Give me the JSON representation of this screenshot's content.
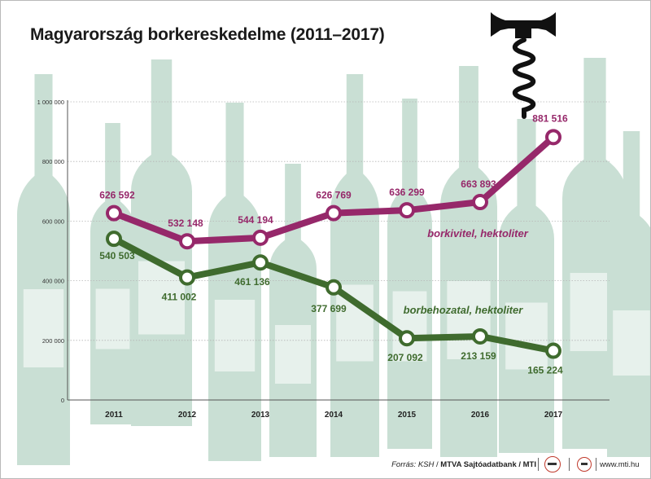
{
  "title": "Magyarország borkereskedelme (2011–2017)",
  "footer": {
    "source_label": "Forrás: KSH",
    "source_agency": "MTVA Sajtóadatbank / MTI",
    "site": "www.mti.hu"
  },
  "colors": {
    "export_line": "#96286a",
    "import_line": "#3f6b2e",
    "bottle_fill": "#c9dfd4",
    "corkscrew": "#111111"
  },
  "icons": [
    "corkscrew-icon",
    "wine-bottle-icon"
  ],
  "chart_data": {
    "type": "line",
    "x": [
      "2011",
      "2012",
      "2013",
      "2014",
      "2015",
      "2016",
      "2017"
    ],
    "ylim": [
      0,
      1000000
    ],
    "yticks": [
      "0",
      "200 000",
      "400 000",
      "600 000",
      "800 000",
      "1 000 000"
    ],
    "grid": true,
    "series": [
      {
        "name": "borkivitel, hektoliter",
        "values": [
          626592,
          532148,
          544194,
          626769,
          636299,
          663893,
          881516
        ],
        "labels": [
          "626 592",
          "532 148",
          "544 194",
          "626 769",
          "636 299",
          "663 893",
          "881 516"
        ]
      },
      {
        "name": "borbehozatal, hektoliter",
        "values": [
          540503,
          411002,
          461136,
          377699,
          207092,
          213159,
          165224
        ],
        "labels": [
          "540 503",
          "411 002",
          "461 136",
          "377 699",
          "207 092",
          "213 159",
          "165 224"
        ]
      }
    ]
  }
}
